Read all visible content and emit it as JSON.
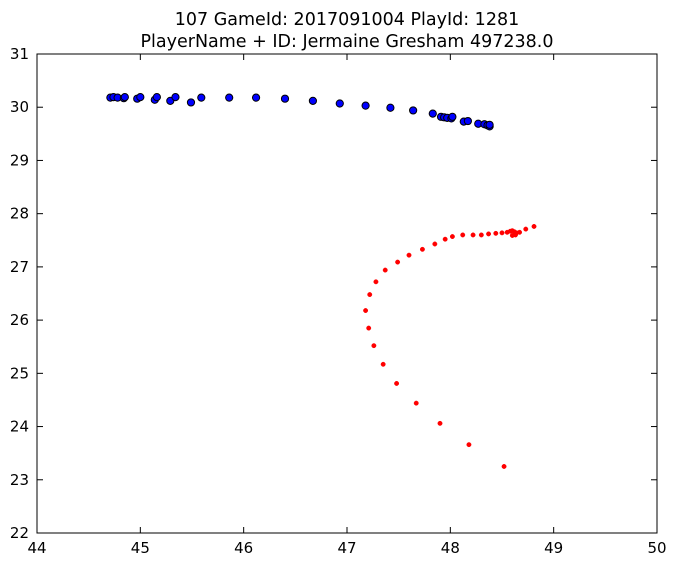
{
  "chart_data": {
    "type": "scatter",
    "title_lines": [
      "107 GameId: 2017091004 PlayId: 1281",
      "PlayerName + ID: Jermaine Gresham 497238.0"
    ],
    "xlabel": "",
    "ylabel": "",
    "xlim": [
      44,
      50
    ],
    "ylim": [
      22,
      31
    ],
    "xticks": [
      44,
      45,
      46,
      47,
      48,
      49,
      50
    ],
    "yticks": [
      22,
      23,
      24,
      25,
      26,
      27,
      28,
      29,
      30,
      31
    ],
    "grid": false,
    "series": [
      {
        "color": "#0000ff",
        "edge_color": "#000000",
        "marker": "large-circle",
        "points": [
          [
            44.71,
            30.18
          ],
          [
            44.74,
            30.19
          ],
          [
            44.78,
            30.18
          ],
          [
            44.84,
            30.17
          ],
          [
            44.85,
            30.19
          ],
          [
            44.97,
            30.16
          ],
          [
            45.0,
            30.19
          ],
          [
            45.14,
            30.14
          ],
          [
            45.16,
            30.19
          ],
          [
            45.29,
            30.12
          ],
          [
            45.34,
            30.19
          ],
          [
            45.49,
            30.09
          ],
          [
            45.59,
            30.18
          ],
          [
            45.86,
            30.18
          ],
          [
            46.12,
            30.18
          ],
          [
            46.4,
            30.16
          ],
          [
            46.67,
            30.12
          ],
          [
            46.93,
            30.07
          ],
          [
            47.18,
            30.03
          ],
          [
            47.42,
            29.99
          ],
          [
            47.64,
            29.94
          ],
          [
            47.83,
            29.88
          ],
          [
            47.91,
            29.82
          ],
          [
            47.94,
            29.81
          ],
          [
            47.97,
            29.8
          ],
          [
            48.01,
            29.79
          ],
          [
            48.02,
            29.82
          ],
          [
            48.13,
            29.73
          ],
          [
            48.17,
            29.74
          ],
          [
            48.27,
            29.69
          ],
          [
            48.33,
            29.68
          ],
          [
            48.36,
            29.66
          ],
          [
            48.38,
            29.64
          ],
          [
            48.38,
            29.67
          ]
        ]
      },
      {
        "color": "#ff0000",
        "edge_color": "#ff0000",
        "marker": "small-dot",
        "points": [
          [
            48.52,
            23.25
          ],
          [
            48.18,
            23.66
          ],
          [
            47.9,
            24.06
          ],
          [
            47.67,
            24.44
          ],
          [
            47.48,
            24.81
          ],
          [
            47.35,
            25.17
          ],
          [
            47.26,
            25.52
          ],
          [
            47.21,
            25.85
          ],
          [
            47.18,
            26.18
          ],
          [
            47.22,
            26.48
          ],
          [
            47.28,
            26.72
          ],
          [
            47.37,
            26.94
          ],
          [
            47.49,
            27.09
          ],
          [
            47.6,
            27.22
          ],
          [
            47.73,
            27.33
          ],
          [
            47.85,
            27.43
          ],
          [
            47.95,
            27.52
          ],
          [
            48.02,
            27.57
          ],
          [
            48.12,
            27.6
          ],
          [
            48.22,
            27.6
          ],
          [
            48.3,
            27.6
          ],
          [
            48.37,
            27.62
          ],
          [
            48.44,
            27.63
          ],
          [
            48.5,
            27.64
          ],
          [
            48.55,
            27.65
          ],
          [
            48.58,
            27.67
          ],
          [
            48.6,
            27.68
          ],
          [
            48.62,
            27.66
          ],
          [
            48.64,
            27.64
          ],
          [
            48.63,
            27.61
          ],
          [
            48.6,
            27.59
          ],
          [
            48.63,
            27.6
          ],
          [
            48.67,
            27.65
          ],
          [
            48.73,
            27.71
          ],
          [
            48.81,
            27.76
          ]
        ]
      }
    ]
  }
}
